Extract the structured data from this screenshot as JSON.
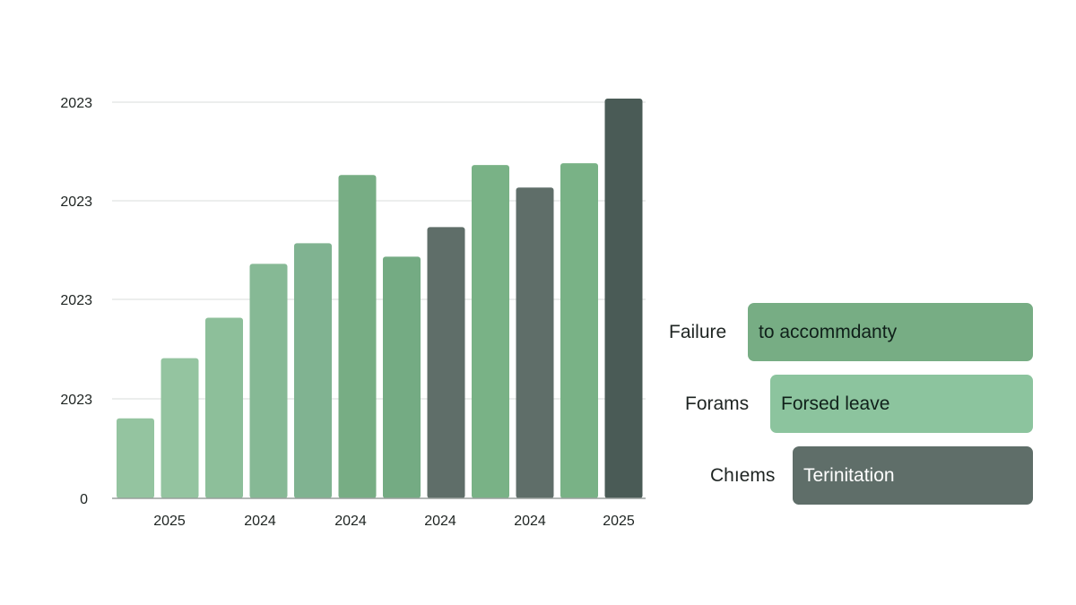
{
  "chart_data": {
    "type": "bar",
    "y_tick_labels": [
      "0",
      "2023",
      "2023",
      "2023",
      "2023"
    ],
    "x_tick_labels": [
      "2025",
      "2024",
      "2024",
      "2024",
      "2024",
      "2025"
    ],
    "values": [
      89,
      156,
      201,
      261,
      284,
      360,
      269,
      302,
      371,
      346,
      373,
      445
    ],
    "ylim": [
      0,
      445
    ],
    "grid": true,
    "bar_colors": [
      "#94c4a0",
      "#94c4a0",
      "#8dbf9a",
      "#86b995",
      "#80b391",
      "#77ad84",
      "#74ab83",
      "#5f6e69",
      "#79b286",
      "#5f6e69",
      "#79b286",
      "#4a5b56"
    ],
    "legend": {
      "placement": "right",
      "entries": [
        {
          "label": "Failure",
          "bar_text": "to accommdanty",
          "color": "#77ad84"
        },
        {
          "label": "Forams",
          "bar_text": "Forsed leave",
          "color": "#8cc49e"
        },
        {
          "label": "Chıems",
          "bar_text": "Terinitation",
          "color": "#5f6e69"
        }
      ]
    }
  }
}
